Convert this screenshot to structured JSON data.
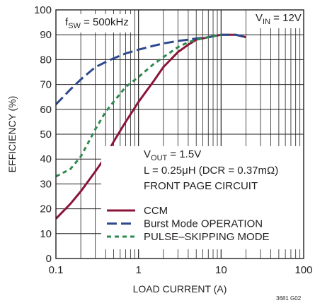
{
  "chart_data": {
    "type": "line",
    "title": "",
    "xlabel": "LOAD CURRENT (A)",
    "ylabel": "EFFICIENCY (%)",
    "xscale": "log",
    "xlim": [
      0.1,
      100
    ],
    "ylim": [
      0,
      100
    ],
    "xticks": [
      0.1,
      1,
      10,
      100
    ],
    "xtick_labels": [
      "0.1",
      "1",
      "10",
      "100"
    ],
    "yticks": [
      0,
      10,
      20,
      30,
      40,
      50,
      60,
      70,
      80,
      90,
      100
    ],
    "ytick_labels": [
      "0",
      "10",
      "20",
      "30",
      "40",
      "50",
      "60",
      "70",
      "80",
      "90",
      "100"
    ],
    "grid": true,
    "legend_placement": "bottom-right",
    "annotations": {
      "fsw": {
        "main": "f",
        "sub": "SW",
        "rest": " = 500kHz"
      },
      "vin": {
        "main": "V",
        "sub": "IN",
        "rest": " = 12V"
      },
      "vout": {
        "main": "V",
        "sub": "OUT",
        "rest": " = 1.5V"
      },
      "inductor": "L = 0.25μH (DCR = 0.37mΩ)",
      "circuit": "FRONT PAGE CIRCUIT",
      "figure_code": "3681 G02"
    },
    "series": [
      {
        "name": "CCM",
        "color": "#8a1538",
        "dash": "solid",
        "x": [
          0.1,
          0.15,
          0.2,
          0.3,
          0.4,
          0.5,
          0.7,
          1.0,
          1.5,
          2.0,
          3.0,
          4.0,
          5.0,
          7.0,
          10.0,
          15.0,
          20.0
        ],
        "y": [
          16,
          22,
          27,
          35,
          41,
          47,
          55,
          63,
          71,
          77,
          83,
          86,
          88,
          89,
          90,
          90,
          89
        ]
      },
      {
        "name": "Burst Mode OPERATION",
        "color": "#2e4a8f",
        "dash": "long",
        "x": [
          0.1,
          0.15,
          0.2,
          0.3,
          0.4,
          0.5,
          0.7,
          1.0,
          1.5,
          2.0,
          3.0,
          4.0,
          5.0,
          7.0,
          10.0,
          15.0,
          20.0
        ],
        "y": [
          62,
          68,
          72,
          77,
          79,
          80.5,
          82.5,
          84,
          85.5,
          86.5,
          87.5,
          88,
          88.5,
          89,
          90,
          90,
          89
        ]
      },
      {
        "name": "PULSE–SKIPPING MODE",
        "color": "#2e8a4e",
        "dash": "short",
        "x": [
          0.1,
          0.15,
          0.2,
          0.25,
          0.3,
          0.4,
          0.5,
          0.7,
          1.0,
          1.5,
          2.0,
          3.0,
          4.0,
          5.0,
          7.0,
          10.0
        ],
        "y": [
          33,
          36,
          41,
          47,
          52,
          59,
          63,
          69,
          73,
          78,
          81,
          85,
          87,
          88,
          89,
          90
        ]
      }
    ]
  }
}
